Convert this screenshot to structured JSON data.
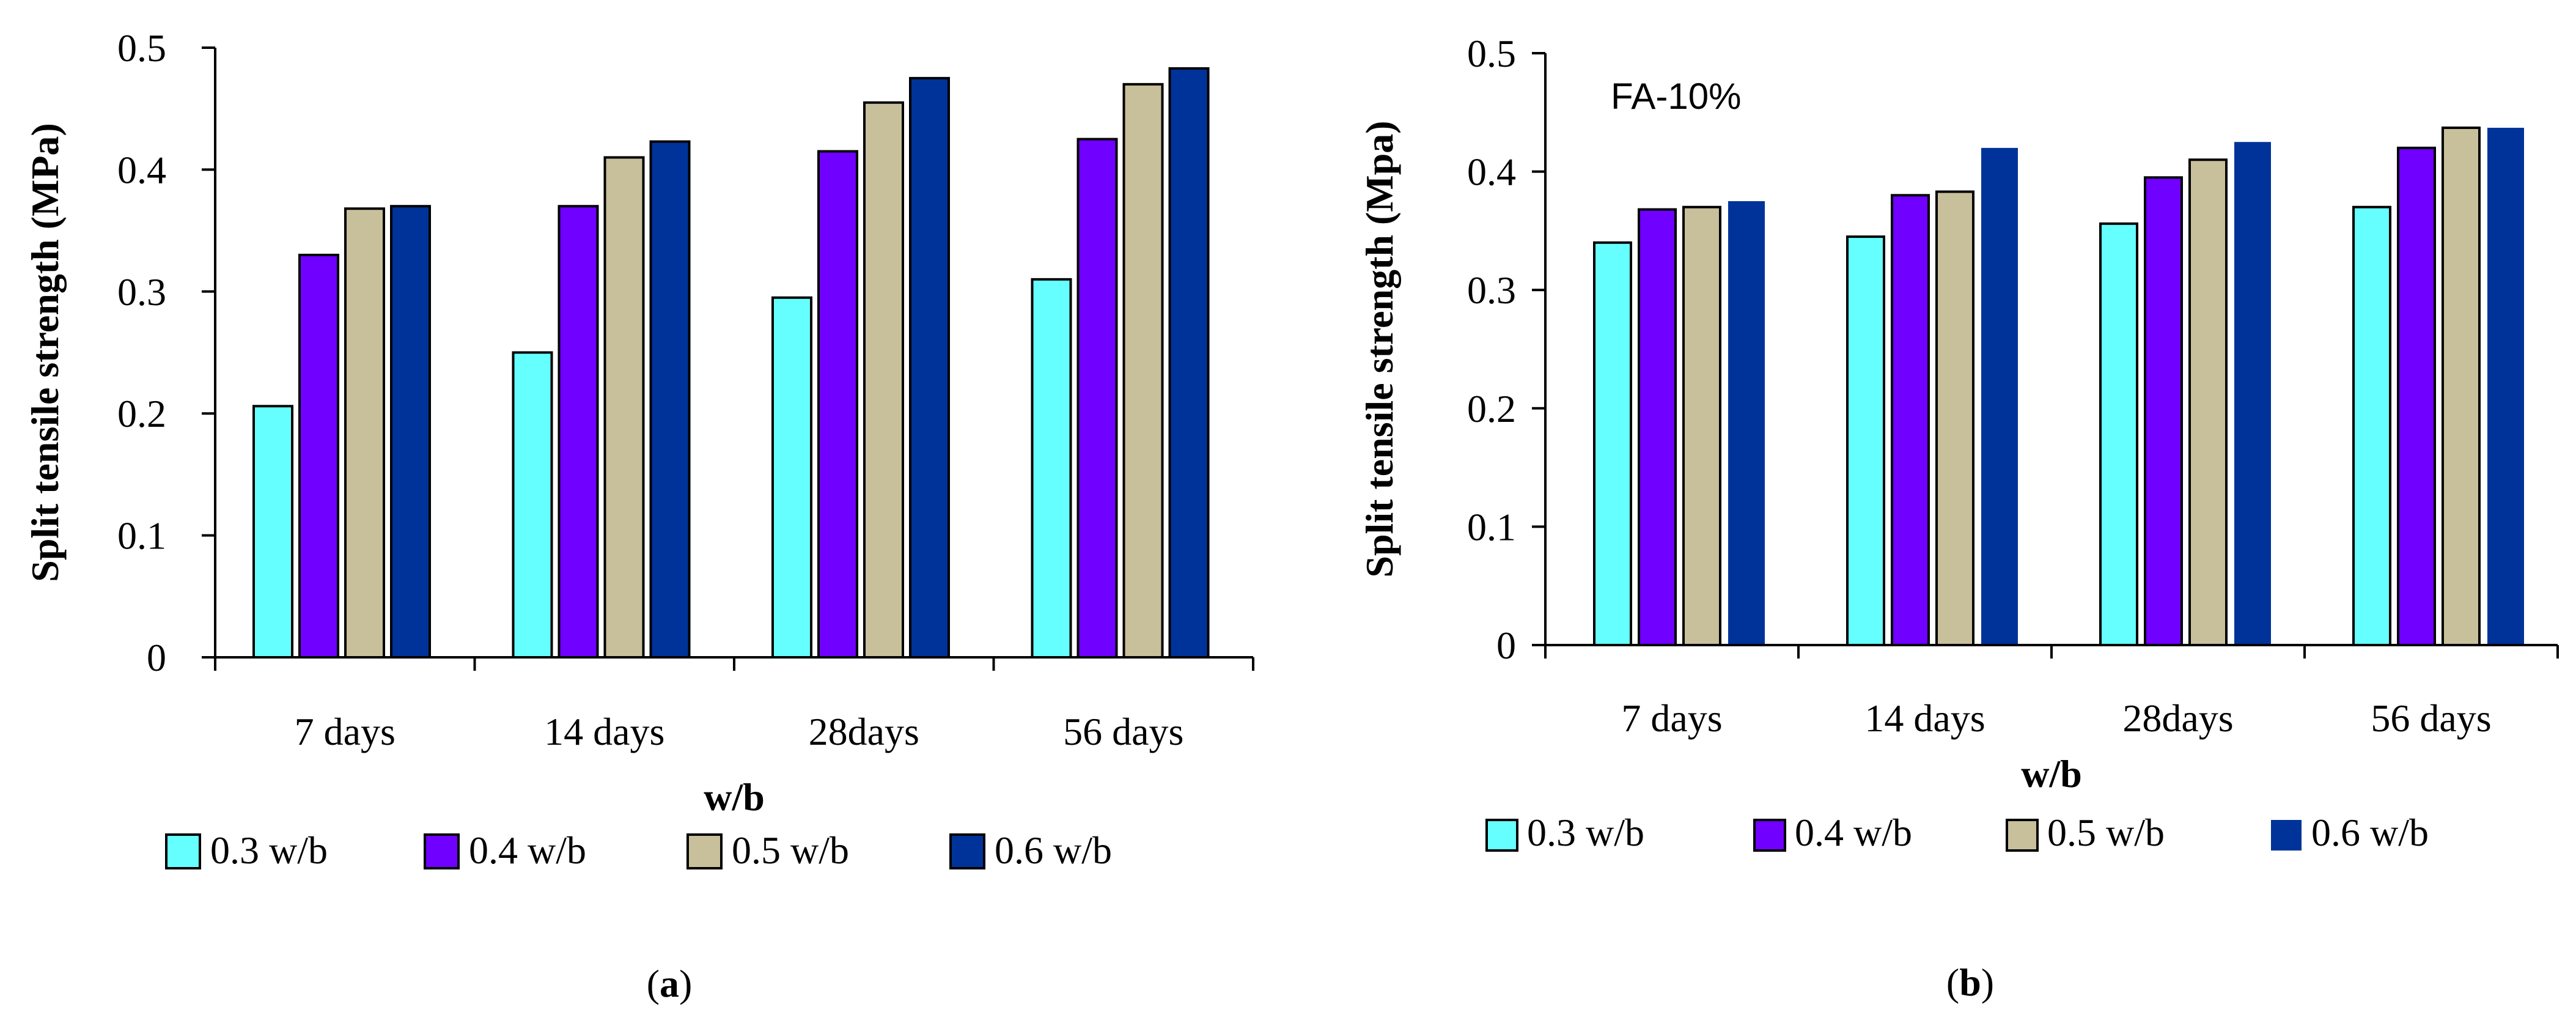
{
  "figure": {
    "charts": [
      {
        "id": "a",
        "caption": {
          "open": "(",
          "letter": "a",
          "close": ")"
        },
        "annotation": ""
      },
      {
        "id": "b",
        "caption": {
          "open": "(",
          "letter": "b",
          "close": ")"
        },
        "annotation": "FA-10%"
      }
    ]
  },
  "chart_data": [
    {
      "type": "bar",
      "title": "",
      "xlabel": "w/b",
      "ylabel": "Split tensile strength (MPa)",
      "ylim": [
        0,
        0.5
      ],
      "yticks": [
        "0",
        "0.1",
        "0.2",
        "0.3",
        "0.4",
        "0.5"
      ],
      "grid": false,
      "legend_position": "bottom",
      "categories": [
        "7 days",
        "14 days",
        "28days",
        "56 days"
      ],
      "series": [
        {
          "name": "0.3 w/b",
          "color": "#66ffff",
          "bordered": true,
          "values": [
            0.206,
            0.25,
            0.295,
            0.31
          ]
        },
        {
          "name": "0.4 w/b",
          "color": "#7000ff",
          "bordered": true,
          "values": [
            0.33,
            0.37,
            0.415,
            0.425
          ]
        },
        {
          "name": "0.5 w/b",
          "color": "#c8bf9b",
          "bordered": true,
          "values": [
            0.368,
            0.41,
            0.455,
            0.47
          ]
        },
        {
          "name": "0.6 w/b",
          "color": "#003399",
          "bordered": true,
          "values": [
            0.37,
            0.423,
            0.475,
            0.483
          ]
        }
      ]
    },
    {
      "type": "bar",
      "title": "",
      "xlabel": "w/b",
      "ylabel": "Split tensile strength (Mpa)",
      "ylim": [
        0,
        0.5
      ],
      "yticks": [
        "0",
        "0.1",
        "0.2",
        "0.3",
        "0.4",
        "0.5"
      ],
      "grid": false,
      "legend_position": "bottom",
      "categories": [
        "7 days",
        "14 days",
        "28days",
        "56 days"
      ],
      "series": [
        {
          "name": "0.3 w/b",
          "color": "#66ffff",
          "bordered": true,
          "values": [
            0.34,
            0.345,
            0.356,
            0.37
          ]
        },
        {
          "name": "0.4 w/b",
          "color": "#7000ff",
          "bordered": true,
          "values": [
            0.368,
            0.38,
            0.395,
            0.42
          ]
        },
        {
          "name": "0.5 w/b",
          "color": "#c8bf9b",
          "bordered": true,
          "values": [
            0.37,
            0.383,
            0.41,
            0.437
          ]
        },
        {
          "name": "0.6 w/b",
          "color": "#003399",
          "bordered": false,
          "values": [
            0.375,
            0.42,
            0.425,
            0.437
          ]
        }
      ]
    }
  ]
}
